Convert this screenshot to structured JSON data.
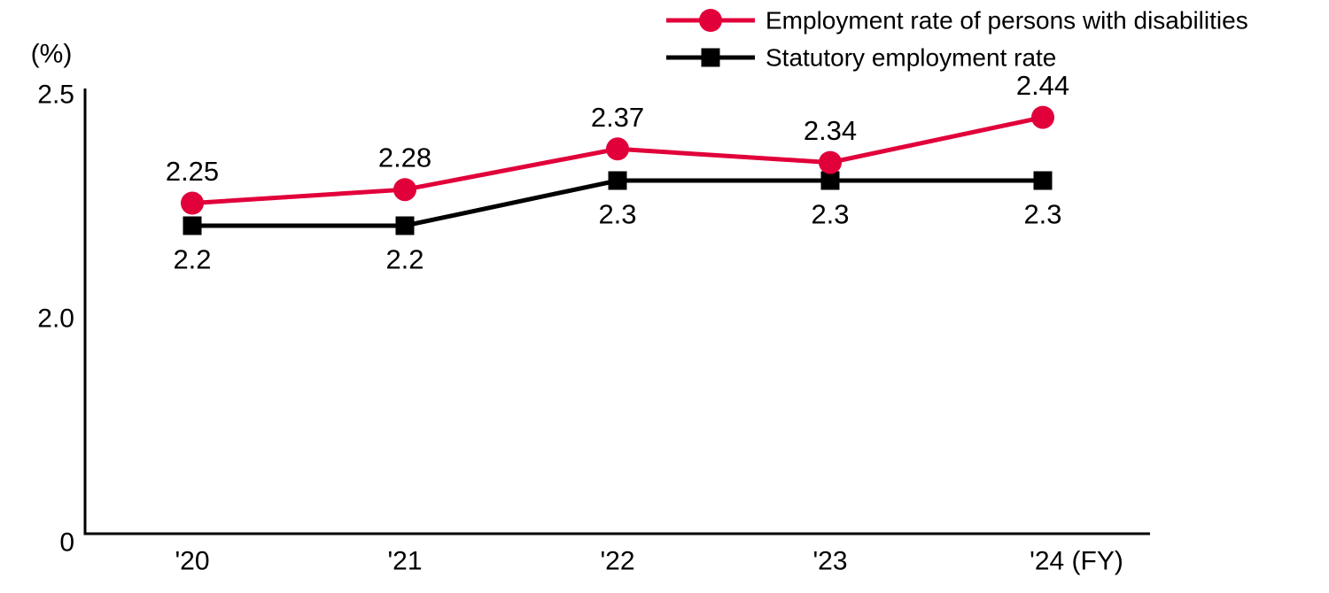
{
  "chart_data": {
    "type": "line",
    "title": "",
    "unit_label": "(%)",
    "categories": [
      "'20",
      "'21",
      "'22",
      "'23",
      "'24"
    ],
    "x_axis_suffix": " (FY)",
    "y_ticks": [
      "2.5",
      "2.0",
      "0"
    ],
    "ylim": [
      0,
      2.5
    ],
    "grid": false,
    "legend_position": "top-right",
    "series": [
      {
        "name": "Employment rate of persons with disabilities",
        "color": "#e1003a",
        "marker": "circle",
        "label_position": "above",
        "values": [
          2.25,
          2.28,
          2.37,
          2.34,
          2.44
        ],
        "data_labels": [
          "2.25",
          "2.28",
          "2.37",
          "2.34",
          "2.44"
        ]
      },
      {
        "name": "Statutory employment rate",
        "color": "#000000",
        "marker": "square",
        "label_position": "below",
        "values": [
          2.2,
          2.2,
          2.3,
          2.3,
          2.3
        ],
        "data_labels": [
          "2.2",
          "2.2",
          "2.3",
          "2.3",
          "2.3"
        ]
      }
    ],
    "axis_color": "#000000"
  }
}
